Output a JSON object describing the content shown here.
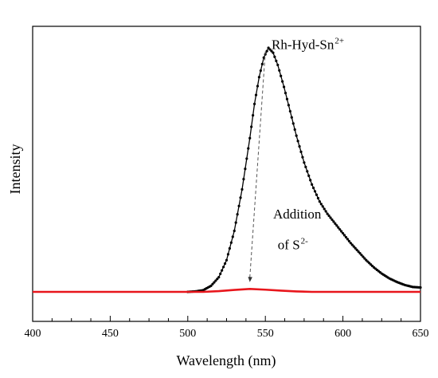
{
  "chart_data": {
    "type": "line",
    "title": "",
    "xlabel": "Wavelength (nm)",
    "ylabel": "Intensity",
    "xlim": [
      400,
      650
    ],
    "ylim": [
      -0.02,
      1.0
    ],
    "x_ticks": [
      "400",
      "450",
      "500",
      "550",
      "600",
      "650"
    ],
    "y_ticks_labeled": false,
    "grid": false,
    "legend": "none",
    "series": [
      {
        "name": "Rh-Hyd-Sn2+",
        "color": "#000000",
        "markers": true,
        "points": [
          [
            400,
            0.0
          ],
          [
            500,
            0.0
          ],
          [
            505,
            0.002
          ],
          [
            510,
            0.007
          ],
          [
            515,
            0.025
          ],
          [
            520,
            0.06
          ],
          [
            525,
            0.13
          ],
          [
            530,
            0.25
          ],
          [
            535,
            0.42
          ],
          [
            540,
            0.63
          ],
          [
            543,
            0.77
          ],
          [
            546,
            0.88
          ],
          [
            549,
            0.96
          ],
          [
            552,
            1.0
          ],
          [
            555,
            0.98
          ],
          [
            558,
            0.93
          ],
          [
            562,
            0.84
          ],
          [
            566,
            0.74
          ],
          [
            570,
            0.64
          ],
          [
            575,
            0.53
          ],
          [
            580,
            0.44
          ],
          [
            585,
            0.37
          ],
          [
            590,
            0.32
          ],
          [
            595,
            0.28
          ],
          [
            600,
            0.24
          ],
          [
            605,
            0.2
          ],
          [
            610,
            0.165
          ],
          [
            615,
            0.13
          ],
          [
            620,
            0.1
          ],
          [
            625,
            0.075
          ],
          [
            630,
            0.055
          ],
          [
            635,
            0.04
          ],
          [
            640,
            0.028
          ],
          [
            645,
            0.02
          ],
          [
            650,
            0.018
          ]
        ]
      },
      {
        "name": "after addition of S2-",
        "color": "#e8161c",
        "markers": false,
        "points": [
          [
            400,
            0.0
          ],
          [
            500,
            0.0
          ],
          [
            510,
            0.0
          ],
          [
            520,
            0.003
          ],
          [
            530,
            0.008
          ],
          [
            540,
            0.012
          ],
          [
            550,
            0.009
          ],
          [
            560,
            0.005
          ],
          [
            570,
            0.002
          ],
          [
            580,
            0.0
          ],
          [
            650,
            0.0
          ]
        ]
      }
    ],
    "annotations": [
      {
        "text": "Rh-Hyd-Sn",
        "superscript": "2+",
        "x": 554,
        "y": 0.995
      },
      {
        "text": "Addition",
        "x": 555,
        "y": 0.3
      },
      {
        "text": "of S",
        "superscript": "2-",
        "x": 558,
        "y": 0.175
      }
    ],
    "arrow": {
      "from": [
        550,
        0.985
      ],
      "to": [
        540,
        0.04
      ],
      "style": "dashed"
    }
  }
}
